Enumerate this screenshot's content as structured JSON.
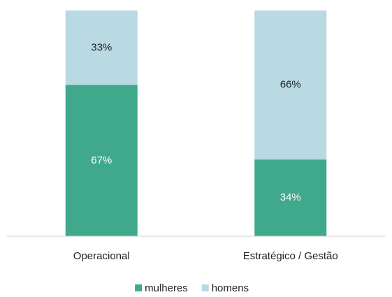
{
  "chart_data": {
    "type": "stacked_bar",
    "categories": [
      "Operacional",
      "Estratégico / Gestão"
    ],
    "series": [
      {
        "name": "mulheres",
        "color": "#40a98b",
        "label_color": "#ffffff",
        "values": [
          67,
          34
        ],
        "value_labels": [
          "67%",
          "34%"
        ]
      },
      {
        "name": "homens",
        "color": "#b9d9e3",
        "label_color": "#222222",
        "values": [
          33,
          66
        ],
        "value_labels": [
          "33%",
          "66%"
        ]
      }
    ],
    "ylim": [
      0,
      100
    ],
    "legend": "bottom"
  }
}
